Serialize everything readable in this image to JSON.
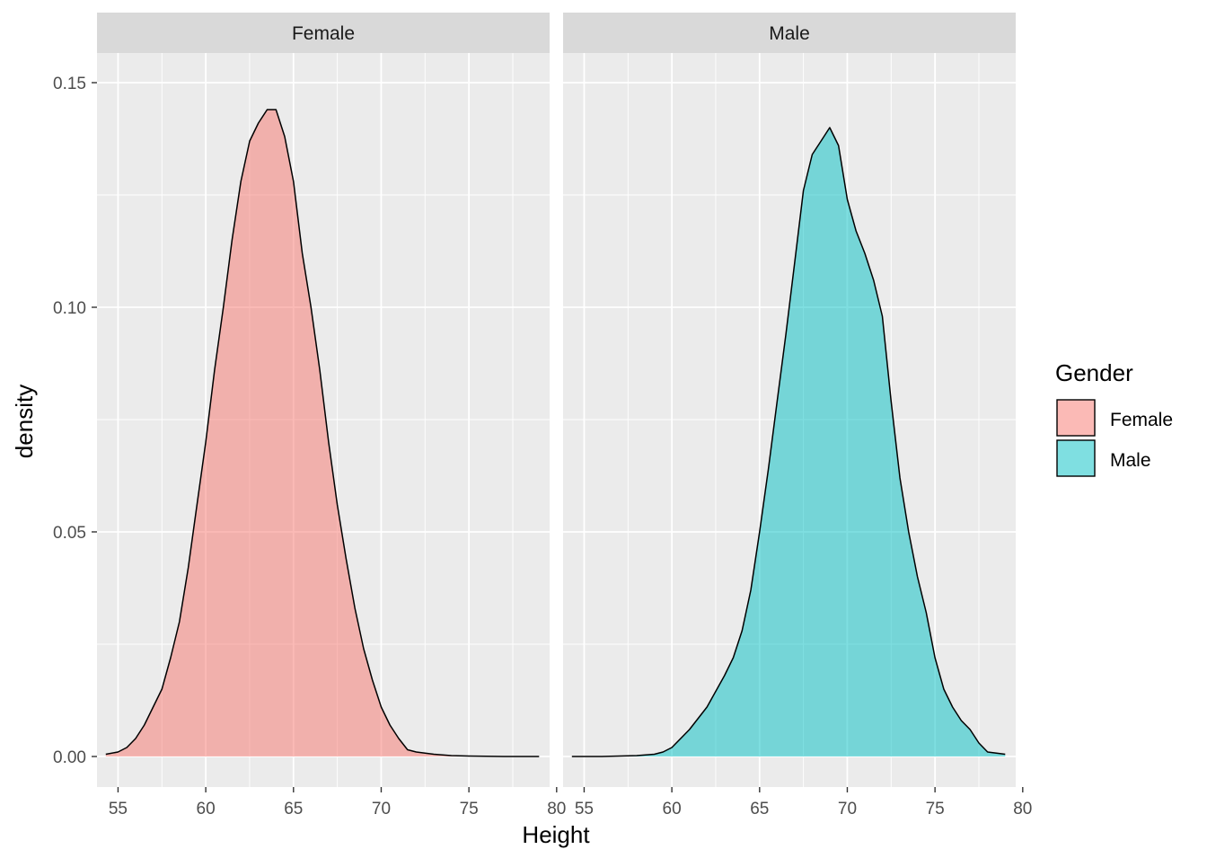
{
  "chart_data": {
    "type": "area",
    "subtype": "density",
    "facet_by": "Gender",
    "xlabel": "Height",
    "ylabel": "density",
    "xlim": [
      53.8,
      79.6
    ],
    "ylim": [
      -0.0068,
      0.1566
    ],
    "x_ticks": [
      55,
      60,
      65,
      70,
      75,
      80
    ],
    "y_ticks": [
      0.0,
      0.05,
      0.1,
      0.15
    ],
    "y_tick_labels": [
      "0.00",
      "0.05",
      "0.10",
      "0.15"
    ],
    "grid": true,
    "legend": {
      "title": "Gender",
      "position": "right",
      "entries": [
        "Female",
        "Male"
      ]
    },
    "colors": {
      "Female": "#F8766D",
      "Male": "#00BFC4",
      "panel_bg": "#EBEBEB",
      "strip_bg": "#D9D9D9",
      "grid": "#FFFFFF",
      "outline": "#000000"
    },
    "fill_alpha": 0.5,
    "panels": [
      {
        "label": "Female",
        "series": [
          {
            "name": "Female",
            "x": [
              54.3,
              55.0,
              55.5,
              56.0,
              56.5,
              57.0,
              57.5,
              58.0,
              58.5,
              59.0,
              59.5,
              60.0,
              60.5,
              61.0,
              61.5,
              62.0,
              62.5,
              63.0,
              63.5,
              64.0,
              64.5,
              65.0,
              65.5,
              66.0,
              66.5,
              67.0,
              67.5,
              68.0,
              68.5,
              69.0,
              69.5,
              70.0,
              70.5,
              71.0,
              71.5,
              72.0,
              73.0,
              74.0,
              75.0,
              77.0,
              79.0
            ],
            "y": [
              0.0005,
              0.001,
              0.002,
              0.004,
              0.007,
              0.011,
              0.015,
              0.022,
              0.03,
              0.042,
              0.056,
              0.07,
              0.086,
              0.1,
              0.115,
              0.128,
              0.137,
              0.141,
              0.144,
              0.144,
              0.138,
              0.128,
              0.112,
              0.1,
              0.086,
              0.07,
              0.056,
              0.044,
              0.033,
              0.024,
              0.017,
              0.011,
              0.007,
              0.004,
              0.0015,
              0.001,
              0.0005,
              0.0002,
              0.0001,
              0.0,
              0.0
            ]
          }
        ]
      },
      {
        "label": "Male",
        "series": [
          {
            "name": "Male",
            "x": [
              54.3,
              56.0,
              58.0,
              59.0,
              59.5,
              60.0,
              61.0,
              62.0,
              63.0,
              63.5,
              64.0,
              64.5,
              65.0,
              65.5,
              66.0,
              66.5,
              67.0,
              67.5,
              68.0,
              68.5,
              69.0,
              69.5,
              70.0,
              70.5,
              71.0,
              71.5,
              72.0,
              72.5,
              73.0,
              73.5,
              74.0,
              74.5,
              75.0,
              75.5,
              76.0,
              76.5,
              77.0,
              77.5,
              78.0,
              79.0
            ],
            "y": [
              0.0,
              0.0,
              0.0002,
              0.0005,
              0.001,
              0.002,
              0.006,
              0.011,
              0.018,
              0.022,
              0.028,
              0.037,
              0.05,
              0.064,
              0.079,
              0.094,
              0.11,
              0.126,
              0.134,
              0.137,
              0.14,
              0.136,
              0.124,
              0.117,
              0.112,
              0.106,
              0.098,
              0.079,
              0.062,
              0.05,
              0.04,
              0.032,
              0.022,
              0.015,
              0.011,
              0.008,
              0.006,
              0.003,
              0.001,
              0.0005
            ]
          }
        ]
      }
    ]
  }
}
